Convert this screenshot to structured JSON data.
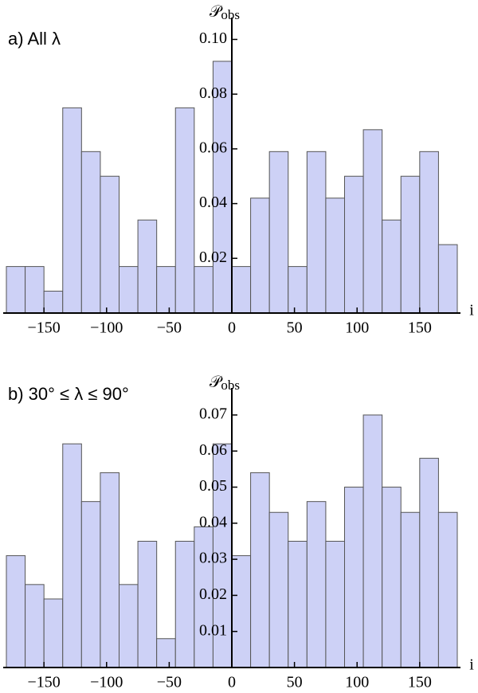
{
  "chart_data": [
    {
      "type": "histogram",
      "panel_label": "a) All λ",
      "y_label": "𝒫",
      "y_label_subscript": "obs",
      "x_label": "i",
      "bins": [
        -180,
        -165,
        -150,
        -135,
        -120,
        -105,
        -90,
        -75,
        -60,
        -45,
        -30,
        -15,
        0,
        15,
        30,
        45,
        60,
        75,
        90,
        105,
        120,
        135,
        150,
        165,
        180
      ],
      "values": [
        0.017,
        0.017,
        0.008,
        0.075,
        0.059,
        0.05,
        0.017,
        0.034,
        0.017,
        0.075,
        0.017,
        0.092,
        0.017,
        0.042,
        0.059,
        0.017,
        0.059,
        0.042,
        0.05,
        0.067,
        0.034,
        0.05,
        0.059,
        0.025
      ],
      "color": "#cdd1f6",
      "xlim": [
        -180,
        180
      ],
      "ylim": [
        0,
        0.108
      ],
      "xticks": [
        {
          "value": -150,
          "label": "−150"
        },
        {
          "value": -100,
          "label": "−100"
        },
        {
          "value": -50,
          "label": "−50"
        },
        0,
        50,
        100,
        150
      ],
      "yticks": [
        0.02,
        0.04,
        0.06,
        0.08,
        {
          "value": 0.1,
          "label": "0.10"
        }
      ]
    },
    {
      "type": "histogram",
      "panel_label": "b) 30° ≤ λ ≤ 90°",
      "y_label": "𝒫",
      "y_label_subscript": "obs",
      "x_label": "i",
      "bins": [
        -180,
        -165,
        -150,
        -135,
        -120,
        -105,
        -90,
        -75,
        -60,
        -45,
        -30,
        -15,
        0,
        15,
        30,
        45,
        60,
        75,
        90,
        105,
        120,
        135,
        150,
        165,
        180
      ],
      "values": [
        0.031,
        0.023,
        0.019,
        0.062,
        0.046,
        0.054,
        0.023,
        0.035,
        0.008,
        0.035,
        0.039,
        0.062,
        0.031,
        0.054,
        0.043,
        0.035,
        0.046,
        0.035,
        0.05,
        0.07,
        0.05,
        0.043,
        0.058,
        0.043
      ],
      "color": "#cdd1f6",
      "xlim": [
        -180,
        180
      ],
      "ylim": [
        0,
        0.0775
      ],
      "xticks": [
        {
          "value": -150,
          "label": "−150"
        },
        {
          "value": -100,
          "label": "−100"
        },
        {
          "value": -50,
          "label": "−50"
        },
        0,
        50,
        100,
        150
      ],
      "yticks": [
        0.01,
        0.02,
        0.03,
        0.04,
        0.05,
        0.06,
        0.07
      ]
    }
  ]
}
